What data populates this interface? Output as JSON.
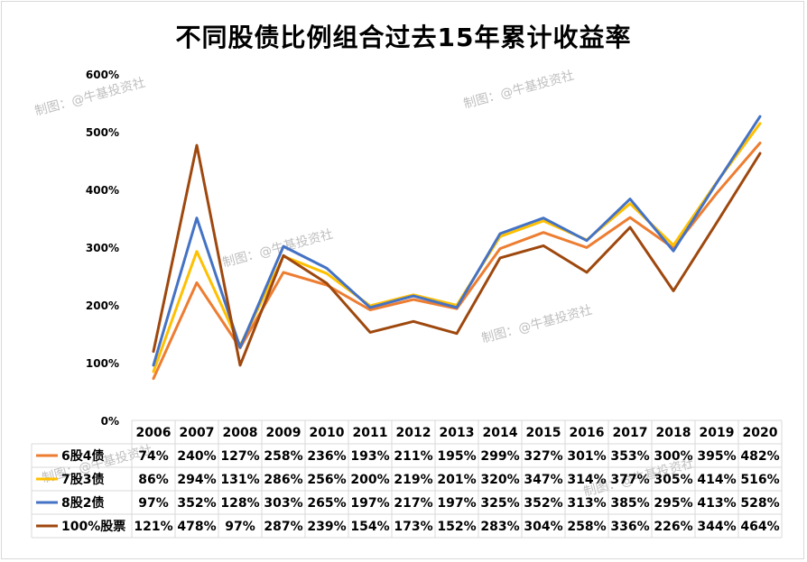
{
  "chart_data": {
    "type": "line",
    "title": "不同股债比例组合过去15年累计收益率",
    "categories": [
      "2006",
      "2007",
      "2008",
      "2009",
      "2010",
      "2011",
      "2012",
      "2013",
      "2014",
      "2015",
      "2016",
      "2017",
      "2018",
      "2019",
      "2020"
    ],
    "y_ticks": [
      "0%",
      "100%",
      "200%",
      "300%",
      "400%",
      "500%",
      "600%"
    ],
    "ylim": [
      0,
      600
    ],
    "grid": false,
    "legend": "data-table",
    "series": [
      {
        "name": "6股4债",
        "color": "#ED7D31",
        "values": [
          74,
          240,
          127,
          258,
          236,
          193,
          211,
          195,
          299,
          327,
          301,
          353,
          300,
          395,
          482
        ],
        "labels": [
          "74%",
          "240%",
          "127%",
          "258%",
          "236%",
          "193%",
          "211%",
          "195%",
          "299%",
          "327%",
          "301%",
          "353%",
          "300%",
          "395%",
          "482%"
        ]
      },
      {
        "name": "7股3债",
        "color": "#FFC000",
        "values": [
          86,
          294,
          131,
          286,
          256,
          200,
          219,
          201,
          320,
          347,
          314,
          377,
          305,
          414,
          516
        ],
        "labels": [
          "86%",
          "294%",
          "131%",
          "286%",
          "256%",
          "200%",
          "219%",
          "201%",
          "320%",
          "347%",
          "314%",
          "377%",
          "305%",
          "414%",
          "516%"
        ]
      },
      {
        "name": "8股2债",
        "color": "#4472C4",
        "values": [
          97,
          352,
          128,
          303,
          265,
          197,
          217,
          197,
          325,
          352,
          313,
          385,
          295,
          413,
          528
        ],
        "labels": [
          "97%",
          "352%",
          "128%",
          "303%",
          "265%",
          "197%",
          "217%",
          "197%",
          "325%",
          "352%",
          "313%",
          "385%",
          "295%",
          "413%",
          "528%"
        ]
      },
      {
        "name": "100%股票",
        "color": "#9E480E",
        "values": [
          121,
          478,
          97,
          287,
          239,
          154,
          173,
          152,
          283,
          304,
          258,
          336,
          226,
          344,
          464
        ],
        "labels": [
          "121%",
          "478%",
          "97%",
          "287%",
          "239%",
          "154%",
          "173%",
          "152%",
          "283%",
          "304%",
          "258%",
          "336%",
          "226%",
          "344%",
          "464%"
        ]
      }
    ]
  },
  "watermark": "制图：@牛基投资社"
}
